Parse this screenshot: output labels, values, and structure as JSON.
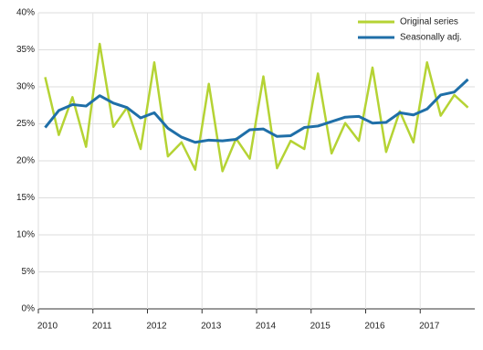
{
  "chart_data": {
    "type": "line",
    "categories": [
      "2010",
      null,
      null,
      null,
      "2011",
      null,
      null,
      null,
      "2012",
      null,
      null,
      null,
      "2013",
      null,
      null,
      null,
      "2014",
      null,
      null,
      null,
      "2015",
      null,
      null,
      null,
      "2016",
      null,
      null,
      null,
      "2017",
      null,
      null,
      null
    ],
    "series": [
      {
        "name": "Original series",
        "color": "#b5d334",
        "values": [
          31.3,
          23.5,
          28.6,
          21.9,
          35.8,
          24.6,
          27.2,
          21.6,
          33.3,
          20.6,
          22.5,
          18.8,
          30.4,
          18.6,
          23.0,
          20.3,
          31.4,
          19.0,
          22.7,
          21.6,
          31.8,
          21.0,
          25.1,
          22.7,
          32.6,
          21.2,
          26.7,
          22.5,
          33.3,
          26.1,
          28.9,
          27.2
        ]
      },
      {
        "name": "Seasonally adj.",
        "color": "#1f6fa8",
        "values": [
          24.5,
          26.8,
          27.6,
          27.4,
          28.8,
          27.8,
          27.2,
          25.8,
          26.5,
          24.4,
          23.2,
          22.5,
          22.8,
          22.7,
          22.9,
          24.2,
          24.3,
          23.3,
          23.4,
          24.5,
          24.7,
          25.3,
          25.9,
          26.0,
          25.1,
          25.2,
          26.5,
          26.2,
          27.0,
          28.9,
          29.3,
          31.0
        ]
      }
    ],
    "ylim": [
      0,
      40
    ],
    "yticks": [
      {
        "value": 0,
        "label": "0%"
      },
      {
        "value": 5,
        "label": "5%"
      },
      {
        "value": 10,
        "label": "10%"
      },
      {
        "value": 15,
        "label": "15%"
      },
      {
        "value": 20,
        "label": "20%"
      },
      {
        "value": 25,
        "label": "25%"
      },
      {
        "value": 30,
        "label": "30%"
      },
      {
        "value": 35,
        "label": "35%"
      },
      {
        "value": 40,
        "label": "40%"
      }
    ],
    "grid": true,
    "legend": "top-right"
  }
}
